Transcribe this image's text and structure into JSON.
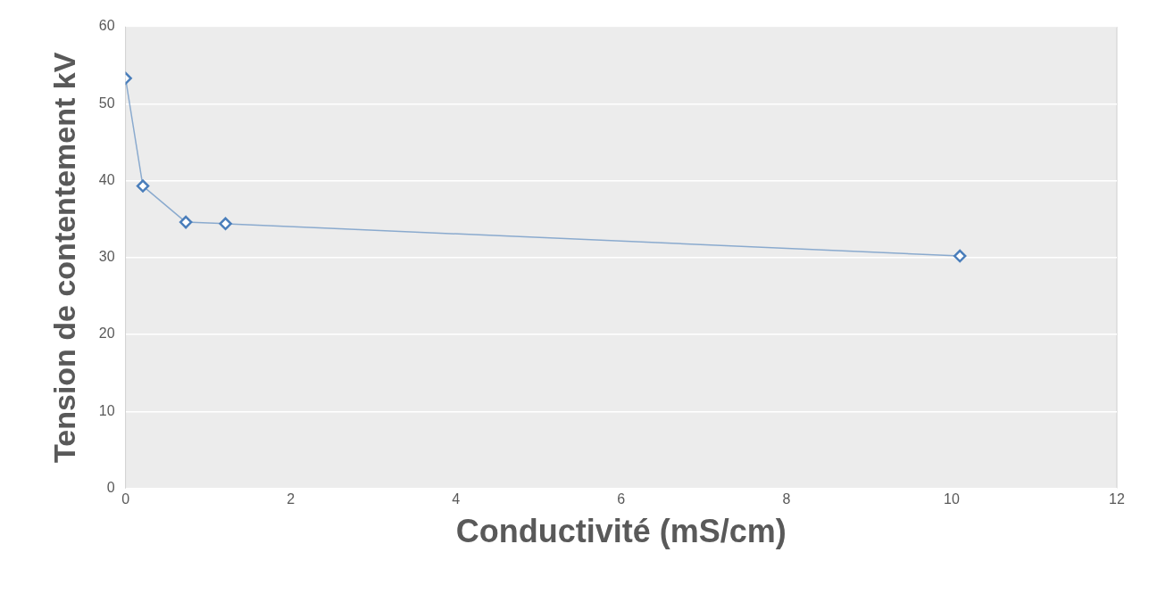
{
  "chart_data": {
    "type": "line",
    "xlabel": "Conductivité (mS/cm)",
    "ylabel": "Tension de contentement kV",
    "x": [
      0,
      0.21,
      0.73,
      1.21,
      10.1
    ],
    "series": [
      {
        "color": "#4a7ebb",
        "values": [
          53.3,
          39.3,
          34.6,
          34.4,
          30.2
        ]
      }
    ],
    "xlim": [
      0,
      12
    ],
    "xticks": [
      0,
      2,
      4,
      6,
      8,
      10,
      12
    ],
    "ylim": [
      0,
      60
    ],
    "yticks": [
      0,
      10,
      20,
      30,
      40,
      50,
      60
    ],
    "grid": "y",
    "legend": false,
    "marker": "diamond",
    "line_style": "solid"
  }
}
